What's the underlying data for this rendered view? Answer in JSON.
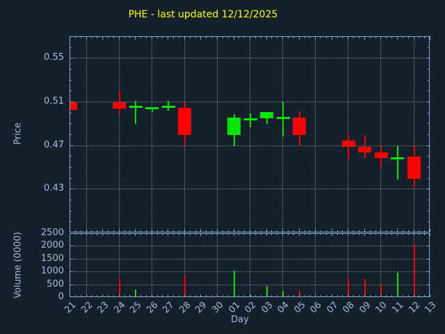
{
  "colors": {
    "background": "#15202d",
    "axis": "#84a9cb",
    "tick_text": "#a3bfdb",
    "title_text": "#ffff00",
    "grid": "#c9ced4",
    "up": "#00e600",
    "down": "#ff0000"
  },
  "chart_data": {
    "type": "candlestick",
    "title": "PHE - last updated 12/12/2025",
    "xlabel": "Day",
    "x_categories": [
      "21",
      "22",
      "23",
      "24",
      "25",
      "26",
      "27",
      "28",
      "29",
      "30",
      "01",
      "02",
      "03",
      "04",
      "05",
      "06",
      "07",
      "08",
      "09",
      "10",
      "11",
      "12",
      "13"
    ],
    "price_panel": {
      "ylabel": "Price",
      "ylim": [
        0.39,
        0.57
      ],
      "yticks": [
        0.43,
        0.47,
        0.51,
        0.55
      ],
      "grid": true
    },
    "volume_panel": {
      "ylabel": "Volume (0000)",
      "ylim": [
        0,
        2500
      ],
      "yticks": [
        0,
        500,
        1000,
        1500,
        2000,
        2500
      ],
      "grid": true
    },
    "series": [
      {
        "day": "21",
        "open": 0.51,
        "high": 0.51,
        "low": 0.503,
        "close": 0.503,
        "volume": 0
      },
      {
        "day": "24",
        "open": 0.51,
        "high": 0.521,
        "low": 0.499,
        "close": 0.504,
        "volume": 770
      },
      {
        "day": "25",
        "open": 0.506,
        "high": 0.511,
        "low": 0.49,
        "close": 0.506,
        "volume": 340
      },
      {
        "day": "26",
        "open": 0.505,
        "high": 0.505,
        "low": 0.501,
        "close": 0.505,
        "volume": 70
      },
      {
        "day": "27",
        "open": 0.506,
        "high": 0.511,
        "low": 0.502,
        "close": 0.506,
        "volume": 55
      },
      {
        "day": "28",
        "open": 0.505,
        "high": 0.51,
        "low": 0.47,
        "close": 0.48,
        "volume": 900
      },
      {
        "day": "01",
        "open": 0.48,
        "high": 0.499,
        "low": 0.47,
        "close": 0.496,
        "volume": 1070
      },
      {
        "day": "02",
        "open": 0.495,
        "high": 0.5,
        "low": 0.487,
        "close": 0.495,
        "volume": 125
      },
      {
        "day": "03",
        "open": 0.495,
        "high": 0.501,
        "low": 0.49,
        "close": 0.501,
        "volume": 450
      },
      {
        "day": "04",
        "open": 0.496,
        "high": 0.51,
        "low": 0.479,
        "close": 0.496,
        "volume": 270
      },
      {
        "day": "05",
        "open": 0.496,
        "high": 0.501,
        "low": 0.47,
        "close": 0.48,
        "volume": 280
      },
      {
        "day": "08",
        "open": 0.475,
        "high": 0.48,
        "low": 0.458,
        "close": 0.469,
        "volume": 765
      },
      {
        "day": "09",
        "open": 0.469,
        "high": 0.48,
        "low": 0.459,
        "close": 0.464,
        "volume": 740
      },
      {
        "day": "10",
        "open": 0.464,
        "high": 0.47,
        "low": 0.45,
        "close": 0.459,
        "volume": 480
      },
      {
        "day": "11",
        "open": 0.459,
        "high": 0.47,
        "low": 0.439,
        "close": 0.459,
        "volume": 985
      },
      {
        "day": "12",
        "open": 0.46,
        "high": 0.47,
        "low": 0.432,
        "close": 0.44,
        "volume": 2130
      }
    ]
  }
}
